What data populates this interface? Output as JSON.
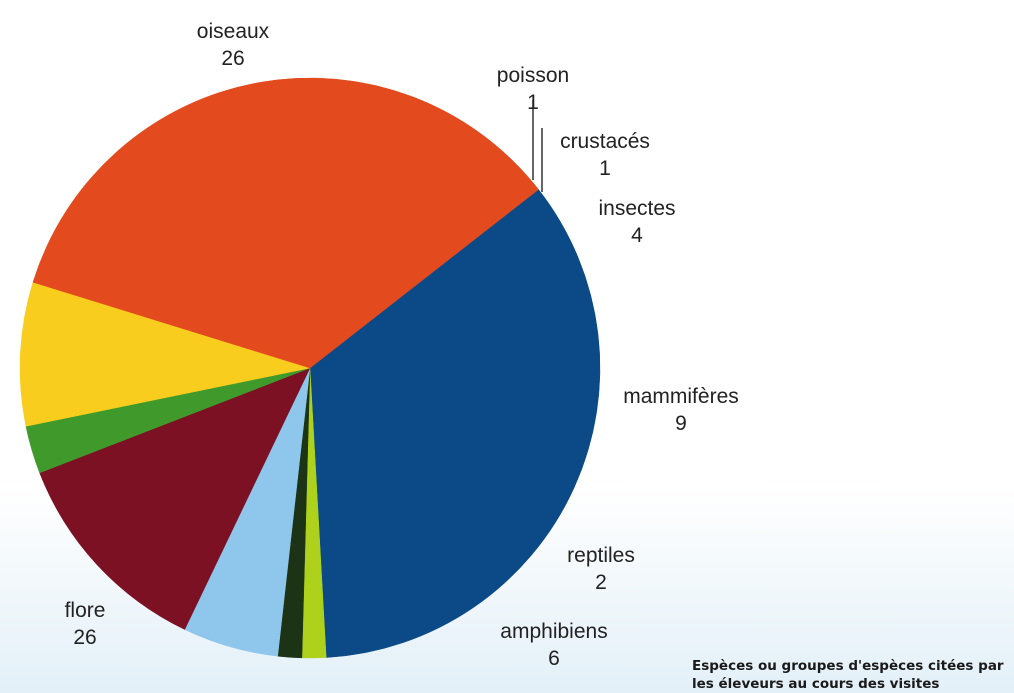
{
  "chart_data": {
    "type": "pie",
    "slices": [
      {
        "label": "oiseaux",
        "value": 26,
        "color": "#0b4a87"
      },
      {
        "label": "poisson",
        "value": 1,
        "color": "#aed21c"
      },
      {
        "label": "crustacés",
        "value": 1,
        "color": "#1c3316"
      },
      {
        "label": "insectes",
        "value": 4,
        "color": "#8fc6ec"
      },
      {
        "label": "mammifères",
        "value": 9,
        "color": "#7c1123"
      },
      {
        "label": "reptiles",
        "value": 2,
        "color": "#3f9a2b"
      },
      {
        "label": "amphibiens",
        "value": 6,
        "color": "#f8cd1e"
      },
      {
        "label": "flore",
        "value": 26,
        "color": "#e34a1e"
      }
    ],
    "legend": "none"
  },
  "caption": {
    "line1": "Espèces ou groupes d'espèces citées par",
    "line2": "les éleveurs au cours des visites"
  }
}
